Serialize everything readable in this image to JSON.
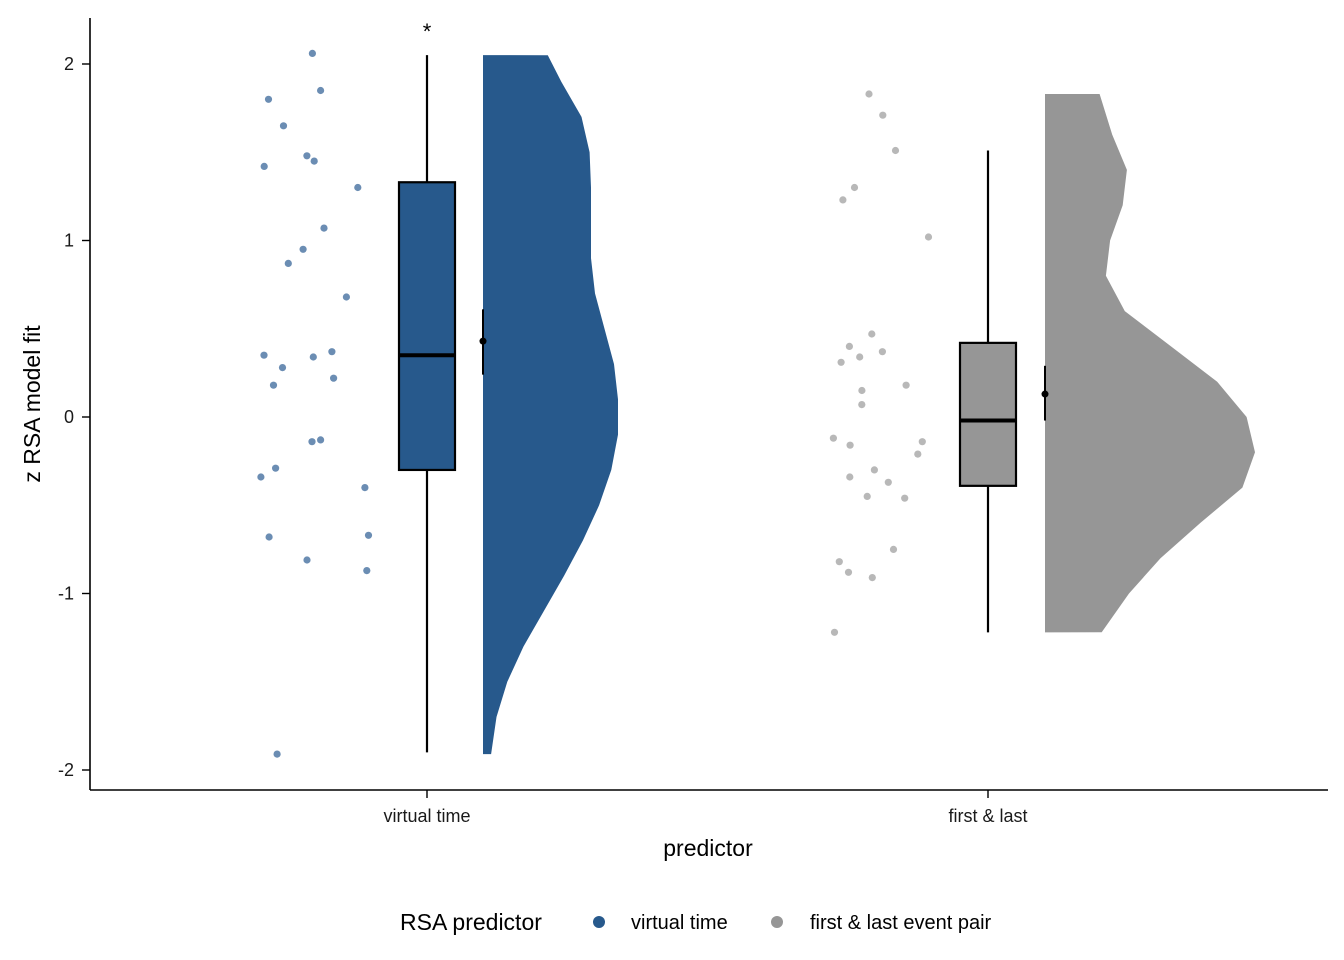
{
  "chart_data": {
    "type": "raincloud",
    "title": "",
    "xlabel": "predictor",
    "ylabel": "z RSA model fit",
    "ylim": [
      -2.1,
      2.25
    ],
    "yticks": [
      -2,
      -1,
      0,
      1,
      2
    ],
    "ytick_labels": [
      "-2",
      "-1",
      "0",
      "1",
      "2"
    ],
    "grid": false,
    "legend": {
      "title": "RSA predictor",
      "position": "bottom",
      "items": [
        {
          "label": "virtual time",
          "color": "#27598c"
        },
        {
          "label": "first & last event pair",
          "color": "#969696"
        }
      ]
    },
    "categories": [
      "virtual time",
      "first & last"
    ],
    "groups": [
      {
        "category": "virtual time",
        "color": "#27598c",
        "point_color": "#6b8db3",
        "significance": "*",
        "box": {
          "q1": -0.3,
          "median": 0.35,
          "q3": 1.33,
          "whisker_low": -1.9,
          "whisker_high": 2.05
        },
        "mean": 0.43,
        "mean_ci": [
          0.24,
          0.61
        ],
        "points": [
          2.06,
          1.85,
          1.8,
          1.65,
          1.48,
          1.45,
          1.42,
          1.3,
          1.07,
          0.95,
          0.87,
          0.68,
          0.37,
          0.35,
          0.34,
          0.28,
          0.22,
          0.18,
          -0.13,
          -0.14,
          -0.29,
          -0.34,
          -0.4,
          -0.67,
          -0.68,
          -0.81,
          -0.87,
          -1.91
        ],
        "density": [
          {
            "y": -1.91,
            "d": 0.06
          },
          {
            "y": -1.7,
            "d": 0.1
          },
          {
            "y": -1.5,
            "d": 0.18
          },
          {
            "y": -1.3,
            "d": 0.3
          },
          {
            "y": -1.1,
            "d": 0.45
          },
          {
            "y": -0.9,
            "d": 0.6
          },
          {
            "y": -0.7,
            "d": 0.74
          },
          {
            "y": -0.5,
            "d": 0.86
          },
          {
            "y": -0.3,
            "d": 0.95
          },
          {
            "y": -0.1,
            "d": 1.0
          },
          {
            "y": 0.1,
            "d": 1.0
          },
          {
            "y": 0.3,
            "d": 0.97
          },
          {
            "y": 0.5,
            "d": 0.9
          },
          {
            "y": 0.7,
            "d": 0.83
          },
          {
            "y": 0.9,
            "d": 0.8
          },
          {
            "y": 1.1,
            "d": 0.8
          },
          {
            "y": 1.3,
            "d": 0.8
          },
          {
            "y": 1.5,
            "d": 0.79
          },
          {
            "y": 1.7,
            "d": 0.73
          },
          {
            "y": 1.9,
            "d": 0.58
          },
          {
            "y": 2.05,
            "d": 0.48
          }
        ]
      },
      {
        "category": "first & last",
        "color": "#969696",
        "point_color": "#b8b8b8",
        "significance": "",
        "box": {
          "q1": -0.39,
          "median": -0.02,
          "q3": 0.42,
          "whisker_low": -1.22,
          "whisker_high": 1.51
        },
        "mean": 0.13,
        "mean_ci": [
          -0.02,
          0.29
        ],
        "points": [
          1.83,
          1.71,
          1.51,
          1.3,
          1.23,
          1.02,
          0.47,
          0.4,
          0.37,
          0.34,
          0.31,
          0.18,
          0.15,
          0.07,
          -0.12,
          -0.14,
          -0.16,
          -0.21,
          -0.3,
          -0.34,
          -0.37,
          -0.45,
          -0.46,
          -0.75,
          -0.82,
          -0.88,
          -0.91,
          -1.22
        ],
        "density": [
          {
            "y": -1.22,
            "d": 0.27
          },
          {
            "y": -1.0,
            "d": 0.4
          },
          {
            "y": -0.8,
            "d": 0.55
          },
          {
            "y": -0.6,
            "d": 0.74
          },
          {
            "y": -0.4,
            "d": 0.94
          },
          {
            "y": -0.2,
            "d": 1.0
          },
          {
            "y": 0.0,
            "d": 0.96
          },
          {
            "y": 0.2,
            "d": 0.82
          },
          {
            "y": 0.4,
            "d": 0.6
          },
          {
            "y": 0.6,
            "d": 0.38
          },
          {
            "y": 0.8,
            "d": 0.29
          },
          {
            "y": 1.0,
            "d": 0.31
          },
          {
            "y": 1.2,
            "d": 0.37
          },
          {
            "y": 1.4,
            "d": 0.39
          },
          {
            "y": 1.6,
            "d": 0.32
          },
          {
            "y": 1.83,
            "d": 0.26
          }
        ]
      }
    ]
  }
}
